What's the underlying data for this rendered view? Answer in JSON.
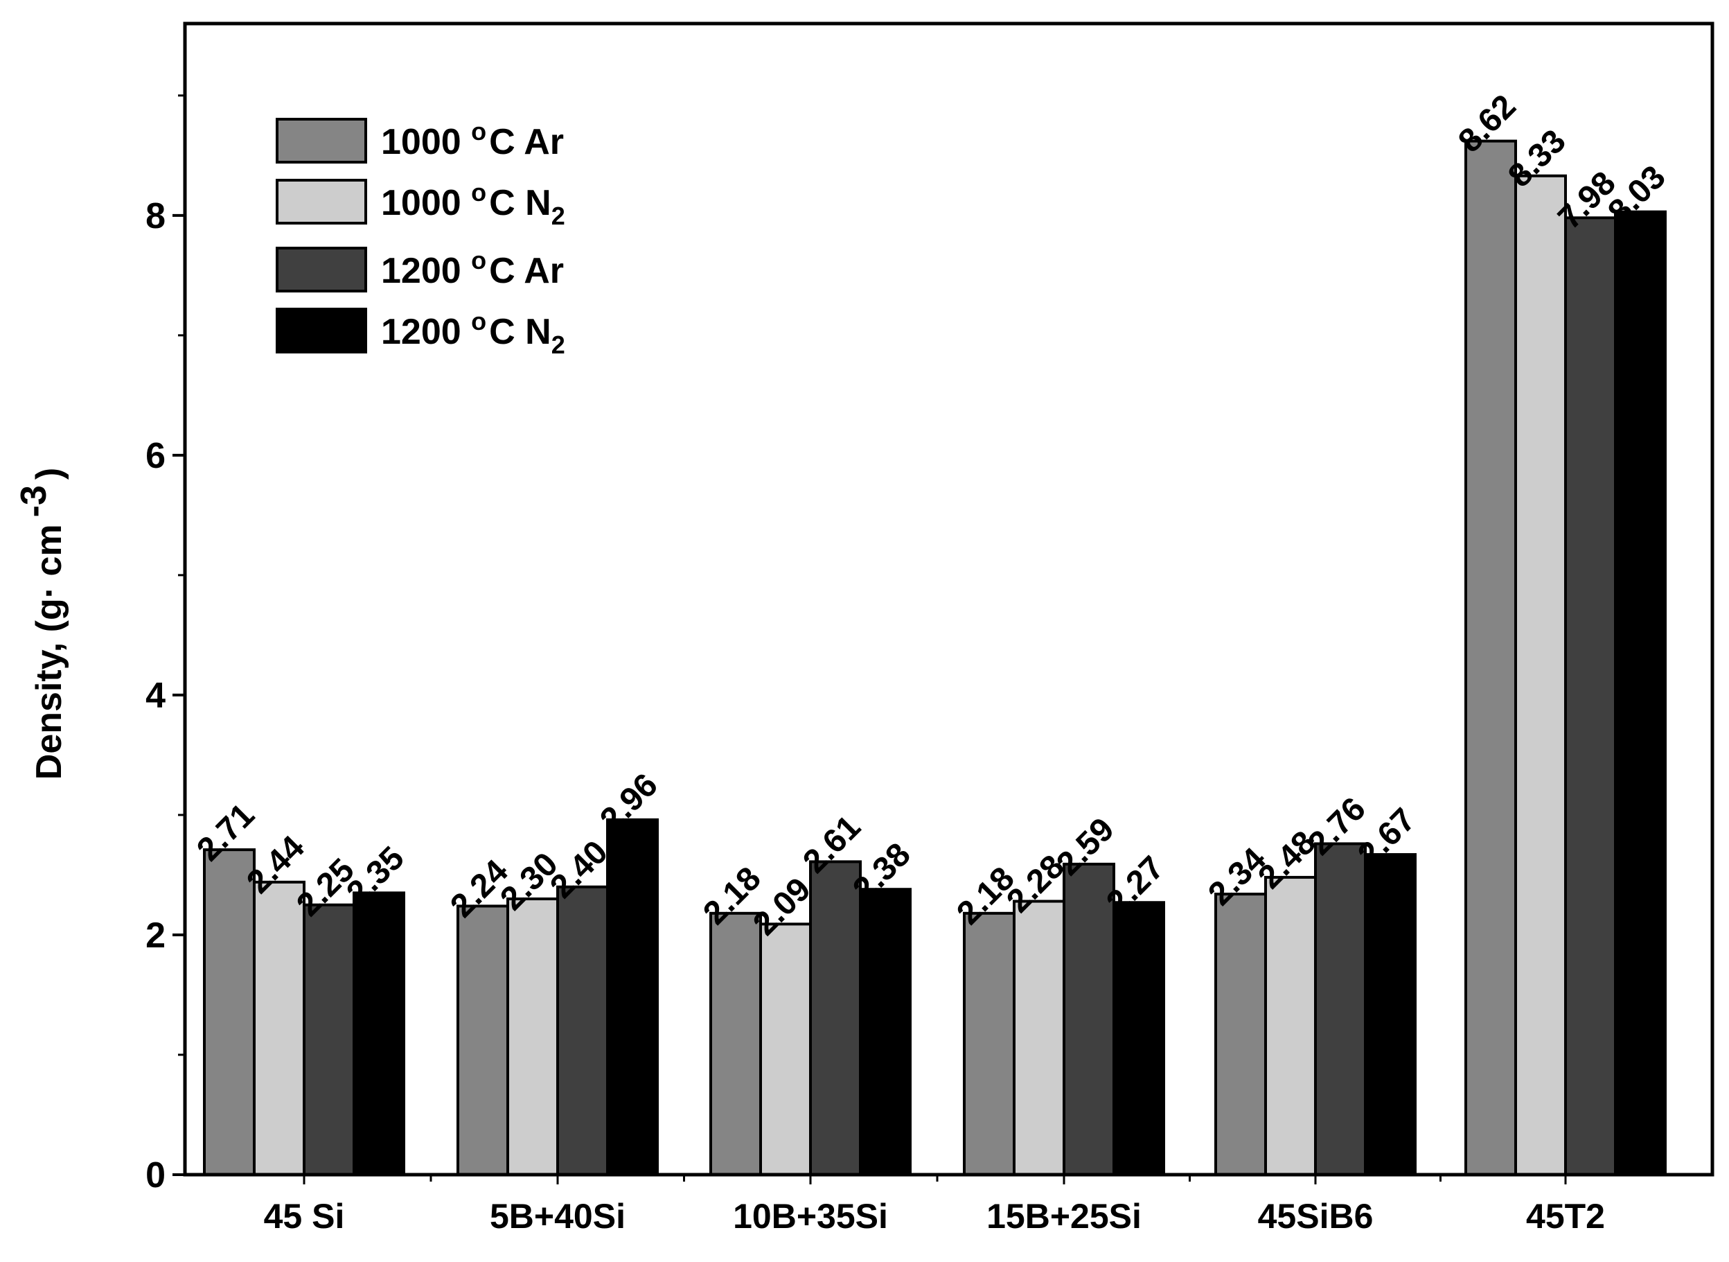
{
  "chart_data": {
    "type": "bar",
    "title": "",
    "xlabel": "",
    "ylabel": "Density, (g· cm",
    "ylabel_superscript": "-3",
    "ylabel_close": ")",
    "ylim": [
      0,
      9.6
    ],
    "yticks": [
      0,
      2,
      4,
      6,
      8
    ],
    "ytick_labels": [
      "0",
      "2",
      "4",
      "6",
      "8"
    ],
    "categories": [
      "45 Si",
      "5B+40Si",
      "10B+35Si",
      "15B+25Si",
      "45SiB6",
      "45T2"
    ],
    "series": [
      {
        "name": "1000 °C Ar",
        "legend_prefix": "1000 ",
        "legend_sup": "o",
        "legend_main": "C Ar",
        "legend_sub": "",
        "color": "#858585",
        "values": [
          2.71,
          2.24,
          2.18,
          2.18,
          2.34,
          8.62
        ],
        "labels": [
          "2.71",
          "2.24",
          "2.18",
          "2.18",
          "2.34",
          "8.62"
        ]
      },
      {
        "name": "1000 °C N2",
        "legend_prefix": "1000 ",
        "legend_sup": "o",
        "legend_main": "C N",
        "legend_sub": "2",
        "color": "#cdcdcd",
        "values": [
          2.44,
          2.3,
          2.09,
          2.28,
          2.48,
          8.33
        ],
        "labels": [
          "2.44",
          "2.30",
          "2.09",
          "2.28",
          "2.48",
          "8.33"
        ]
      },
      {
        "name": "1200 °C Ar",
        "legend_prefix": "1200 ",
        "legend_sup": "o",
        "legend_main": "C Ar",
        "legend_sub": "",
        "color": "#404040",
        "values": [
          2.25,
          2.4,
          2.61,
          2.59,
          2.76,
          7.98
        ],
        "labels": [
          "2.25",
          "2.40",
          "2.61",
          "2.59",
          "2.76",
          "7.98"
        ]
      },
      {
        "name": "1200 °C N2",
        "legend_prefix": "1200 ",
        "legend_sup": "o",
        "legend_main": "C N",
        "legend_sub": "2",
        "color": "#000000",
        "values": [
          2.35,
          2.96,
          2.38,
          2.27,
          2.67,
          8.03
        ],
        "labels": [
          "2.35",
          "2.96",
          "2.38",
          "2.27",
          "2.67",
          "8.03"
        ]
      }
    ],
    "legend_position": "top-left",
    "grid": false
  }
}
